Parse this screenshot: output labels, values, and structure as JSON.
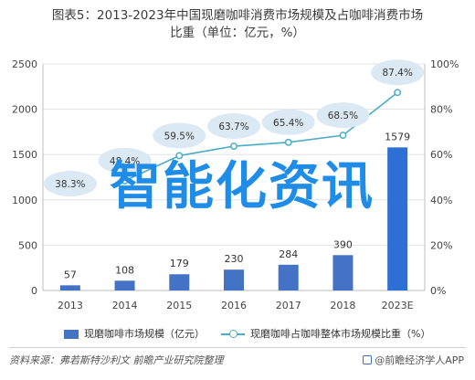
{
  "title": {
    "line1": "图表5：2013-2023年中国现磨咖啡消费市场规模及占咖啡消费市场",
    "line2": "比重（单位：亿元，%）"
  },
  "chart_data": {
    "type": "bar",
    "categories": [
      "2013",
      "2014",
      "2015",
      "2016",
      "2017",
      "2018",
      "2023E"
    ],
    "series": [
      {
        "name": "现磨咖啡市场规模（亿元）",
        "type": "bar",
        "axis": "left",
        "values": [
          57,
          108,
          179,
          230,
          284,
          390,
          1579
        ]
      },
      {
        "name": "现磨咖啡占咖啡整体市场规模比重（%）",
        "type": "line",
        "axis": "right",
        "values": [
          null,
          48.4,
          59.5,
          63.7,
          65.4,
          68.5,
          87.4
        ],
        "labels": [
          "38.3%",
          "48.4%",
          "59.5%",
          "63.7%",
          "65.4%",
          "68.5%",
          "87.4%"
        ]
      }
    ],
    "ylim_left": [
      0,
      2500
    ],
    "yticks_left": [
      "0",
      "500",
      "1000",
      "1500",
      "2000",
      "2500"
    ],
    "ylim_right": [
      0,
      100
    ],
    "yticks_right": [
      "0%",
      "20%",
      "40%",
      "60%",
      "80%",
      "100%"
    ],
    "colors": {
      "bar": "#4472c4",
      "line": "#4bacc6",
      "bubble": "#dbe9f4",
      "highlight_bar": "#2e6fd6"
    }
  },
  "legend": {
    "bar_label": "现磨咖啡市场规模（亿元）",
    "line_label": "现磨咖啡占咖啡整体市场规模比重（%）"
  },
  "watermark": "智能化资讯",
  "footer": {
    "source": "资料来源：弗若斯特沙利文 前瞻产业研究院整理",
    "brand": "@前瞻经济学人APP"
  }
}
